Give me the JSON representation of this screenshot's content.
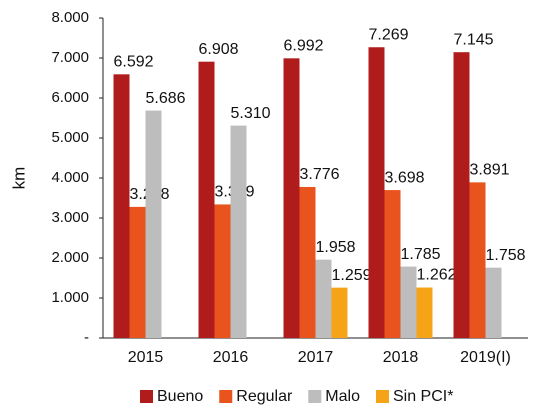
{
  "chart_data": {
    "type": "bar",
    "y_label": "km",
    "categories": [
      "2015",
      "2016",
      "2017",
      "2018",
      "2019(I)"
    ],
    "series": [
      {
        "name": "Bueno",
        "color": "#b01c1c",
        "values": [
          6592,
          6908,
          6992,
          7269,
          7145
        ],
        "value_labels": [
          "6.592",
          "6.908",
          "6.992",
          "7.269",
          "7.145"
        ]
      },
      {
        "name": "Regular",
        "color": "#e8531e",
        "values": [
          3278,
          3339,
          3776,
          3698,
          3891
        ],
        "value_labels": [
          "3.278",
          "3.339",
          "3.776",
          "3.698",
          "3.891"
        ]
      },
      {
        "name": "Malo",
        "color": "#bdbdbd",
        "values": [
          5686,
          5310,
          1958,
          1785,
          1758
        ],
        "value_labels": [
          "5.686",
          "5.310",
          "1.958",
          "1.785",
          "1.758"
        ]
      },
      {
        "name": "Sin PCI*",
        "color": "#f5a418",
        "values": [
          null,
          null,
          1259,
          1262,
          null
        ],
        "value_labels": [
          null,
          null,
          "1.259",
          "1.262",
          null
        ]
      }
    ],
    "ylim": [
      0,
      8000
    ],
    "yticks": [
      {
        "value": 0,
        "label": "-"
      },
      {
        "value": 1000,
        "label": "1.000"
      },
      {
        "value": 2000,
        "label": "2.000"
      },
      {
        "value": 3000,
        "label": "3.000"
      },
      {
        "value": 4000,
        "label": "4.000"
      },
      {
        "value": 5000,
        "label": "5.000"
      },
      {
        "value": 6000,
        "label": "6.000"
      },
      {
        "value": 7000,
        "label": "7.000"
      },
      {
        "value": 8000,
        "label": "8.000"
      }
    ],
    "grid": false,
    "legend": "bottom"
  }
}
